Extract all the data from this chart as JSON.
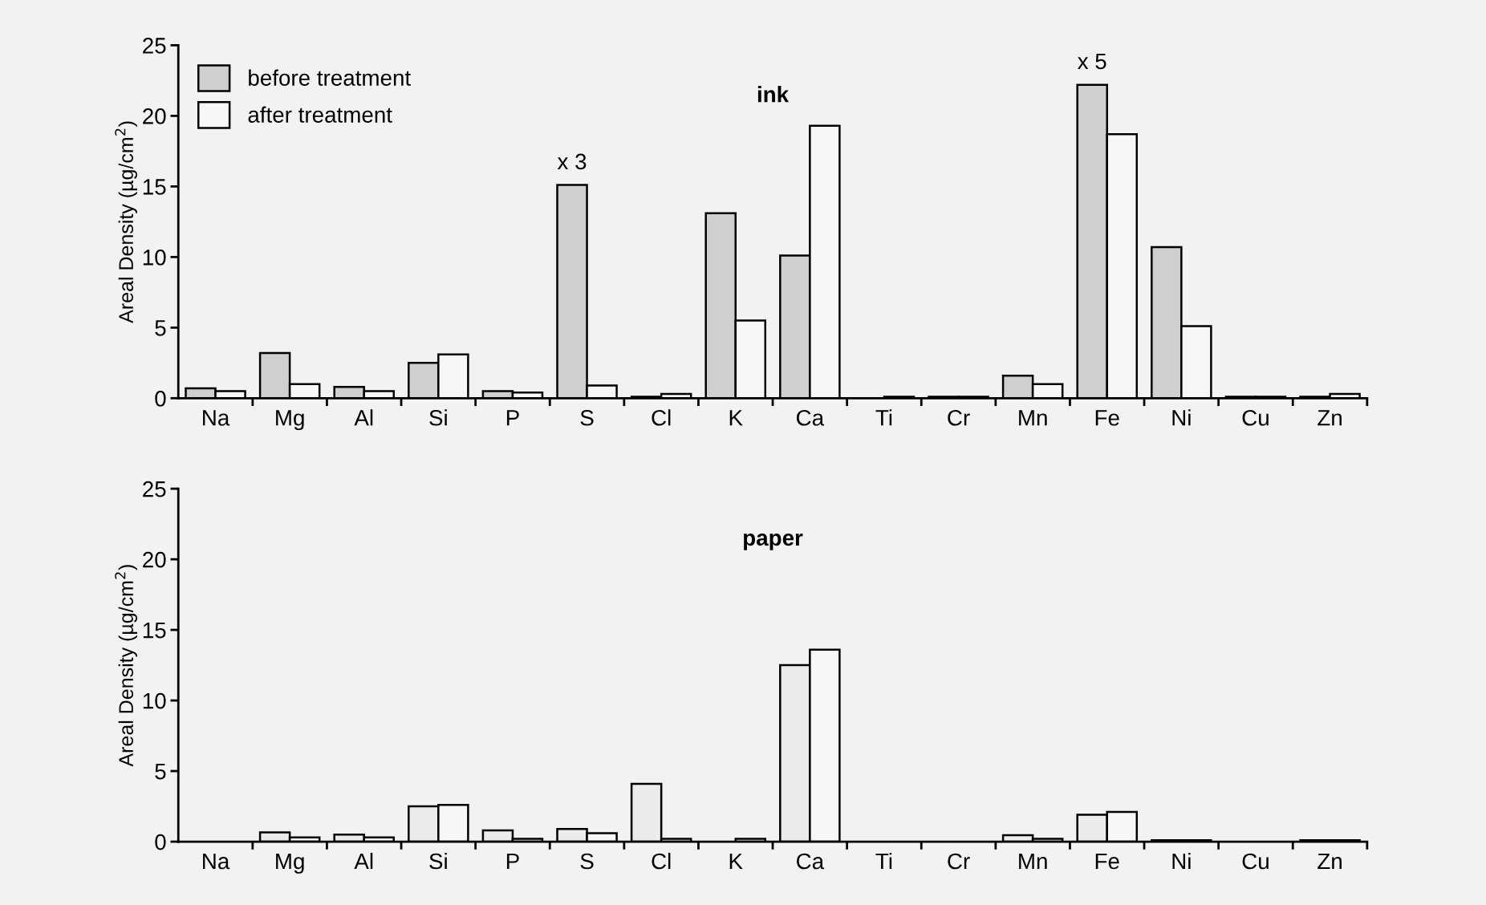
{
  "chart_data": [
    {
      "type": "bar",
      "title": "ink",
      "ylabel": "Areal Density (µg/cm$^{2}$)",
      "categories": [
        "Na",
        "Mg",
        "Al",
        "Si",
        "P",
        "S",
        "Cl",
        "K",
        "Ca",
        "Ti",
        "Cr",
        "Mn",
        "Fe",
        "Ni",
        "Cu",
        "Zn"
      ],
      "series": [
        {
          "name": "before treatment",
          "color": "#cfcfcf",
          "values": [
            0.7,
            3.2,
            0.8,
            2.5,
            0.5,
            15.1,
            0.1,
            13.1,
            10.1,
            0,
            0.1,
            1.6,
            22.2,
            10.7,
            0.1,
            0.1
          ]
        },
        {
          "name": "after treatment",
          "color": "#f7f7f7",
          "values": [
            0.5,
            1.0,
            0.5,
            3.1,
            0.4,
            0.9,
            0.3,
            5.5,
            19.3,
            0.1,
            0.1,
            1.0,
            18.7,
            5.1,
            0.1,
            0.3
          ]
        }
      ],
      "annotations": [
        {
          "text": "x 3",
          "x": "S",
          "y": 15.1
        },
        {
          "text": "x 5",
          "x": "Fe",
          "y": 22.2
        }
      ],
      "ylim": [
        0,
        25
      ],
      "yticks": [
        0,
        5,
        10,
        15,
        20,
        25
      ],
      "legend": "top left",
      "grid": false
    },
    {
      "type": "bar",
      "title": "paper",
      "ylabel": "Areal Density (µg/cm$^{2}$)",
      "categories": [
        "Na",
        "Mg",
        "Al",
        "Si",
        "P",
        "S",
        "Cl",
        "K",
        "Ca",
        "Ti",
        "Cr",
        "Mn",
        "Fe",
        "Ni",
        "Cu",
        "Zn"
      ],
      "series": [
        {
          "color": "#ececec",
          "values": [
            0,
            0.65,
            0.5,
            2.5,
            0.8,
            0.9,
            4.1,
            0,
            12.5,
            0,
            0,
            0.45,
            1.9,
            0.1,
            0,
            0.1
          ]
        },
        {
          "color": "#f7f7f7",
          "values": [
            0,
            0.3,
            0.3,
            2.6,
            0.2,
            0.6,
            0.2,
            0.2,
            13.6,
            0,
            0,
            0.2,
            2.1,
            0.1,
            0,
            0.1
          ]
        }
      ],
      "ylim": [
        0,
        25
      ],
      "yticks": [
        0,
        5,
        10,
        15,
        20,
        25
      ],
      "legend": false,
      "grid": false
    }
  ]
}
